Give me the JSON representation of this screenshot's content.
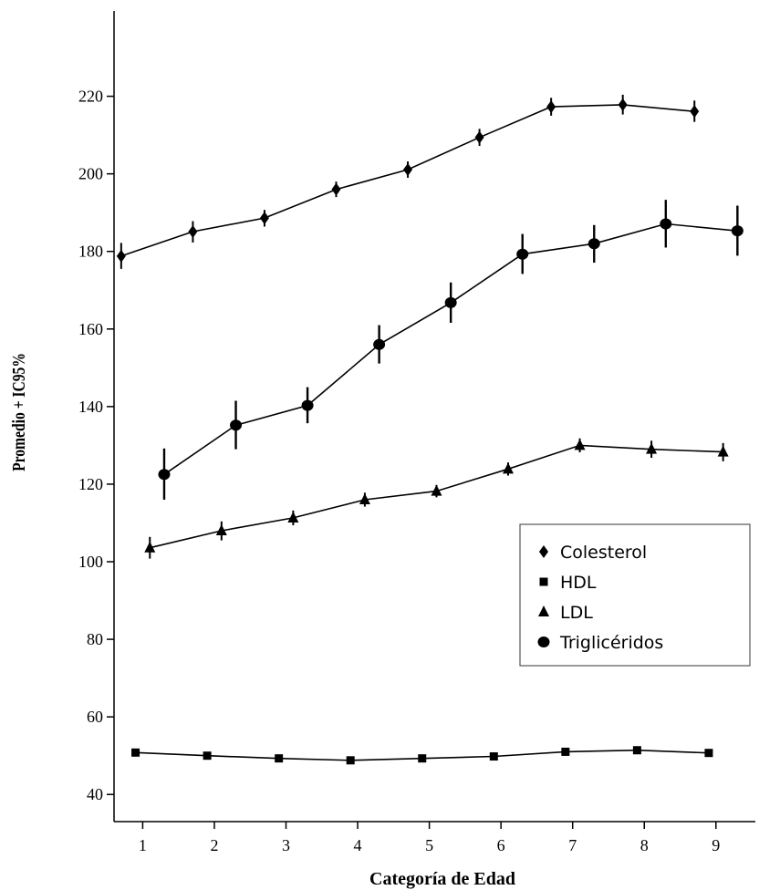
{
  "chart_data": {
    "type": "line",
    "xlabel": "Categoría de Edad",
    "ylabel": "Promedio + IC95%",
    "xlim": [
      0.6,
      9.55
    ],
    "ylim": [
      33,
      242
    ],
    "x_ticks": [
      1,
      2,
      3,
      4,
      5,
      6,
      7,
      8,
      9
    ],
    "y_ticks": [
      40,
      60,
      80,
      100,
      120,
      140,
      160,
      180,
      200,
      220
    ],
    "grid": false,
    "legend_position": "right",
    "series": [
      {
        "name": "Colesterol",
        "marker": "diamond",
        "points": [
          {
            "x": 0.7,
            "y": 178.8,
            "lo": 175.5,
            "hi": 182.2
          },
          {
            "x": 1.7,
            "y": 185.1,
            "lo": 182.3,
            "hi": 187.8
          },
          {
            "x": 2.7,
            "y": 188.6,
            "lo": 186.4,
            "hi": 190.7
          },
          {
            "x": 3.7,
            "y": 196.0,
            "lo": 194.0,
            "hi": 198.0
          },
          {
            "x": 4.7,
            "y": 201.1,
            "lo": 199.0,
            "hi": 203.2
          },
          {
            "x": 5.7,
            "y": 209.4,
            "lo": 207.2,
            "hi": 211.6
          },
          {
            "x": 6.7,
            "y": 217.3,
            "lo": 215.0,
            "hi": 219.6
          },
          {
            "x": 7.7,
            "y": 217.8,
            "lo": 215.3,
            "hi": 220.4
          },
          {
            "x": 8.7,
            "y": 216.1,
            "lo": 213.4,
            "hi": 218.9
          }
        ]
      },
      {
        "name": "HDL",
        "marker": "square",
        "points": [
          {
            "x": 0.9,
            "y": 50.8,
            "lo": 49.8,
            "hi": 51.8
          },
          {
            "x": 1.9,
            "y": 50.0,
            "lo": 49.2,
            "hi": 50.8
          },
          {
            "x": 2.9,
            "y": 49.3,
            "lo": 48.6,
            "hi": 50.0
          },
          {
            "x": 3.9,
            "y": 48.8,
            "lo": 48.2,
            "hi": 49.4
          },
          {
            "x": 4.9,
            "y": 49.3,
            "lo": 48.7,
            "hi": 49.9
          },
          {
            "x": 5.9,
            "y": 49.8,
            "lo": 49.1,
            "hi": 50.5
          },
          {
            "x": 6.9,
            "y": 51.0,
            "lo": 50.3,
            "hi": 51.7
          },
          {
            "x": 7.9,
            "y": 51.4,
            "lo": 50.6,
            "hi": 52.2
          },
          {
            "x": 8.9,
            "y": 50.7,
            "lo": 49.8,
            "hi": 51.6
          }
        ]
      },
      {
        "name": "LDL",
        "marker": "triangle",
        "points": [
          {
            "x": 1.1,
            "y": 103.6,
            "lo": 100.8,
            "hi": 106.4
          },
          {
            "x": 2.1,
            "y": 108.0,
            "lo": 105.5,
            "hi": 110.4
          },
          {
            "x": 3.1,
            "y": 111.3,
            "lo": 109.4,
            "hi": 113.2
          },
          {
            "x": 4.1,
            "y": 116.0,
            "lo": 114.2,
            "hi": 117.8
          },
          {
            "x": 5.1,
            "y": 118.2,
            "lo": 116.6,
            "hi": 119.8
          },
          {
            "x": 6.1,
            "y": 123.9,
            "lo": 122.2,
            "hi": 125.6
          },
          {
            "x": 7.1,
            "y": 130.0,
            "lo": 128.2,
            "hi": 131.8
          },
          {
            "x": 8.1,
            "y": 129.0,
            "lo": 126.8,
            "hi": 131.2
          },
          {
            "x": 9.1,
            "y": 128.3,
            "lo": 125.9,
            "hi": 130.6
          }
        ]
      },
      {
        "name": "Triglicéridos",
        "marker": "circle",
        "points": [
          {
            "x": 1.3,
            "y": 122.5,
            "lo": 116.0,
            "hi": 129.2
          },
          {
            "x": 2.3,
            "y": 135.2,
            "lo": 129.0,
            "hi": 141.5
          },
          {
            "x": 3.3,
            "y": 140.3,
            "lo": 135.7,
            "hi": 145.0
          },
          {
            "x": 4.3,
            "y": 156.0,
            "lo": 151.1,
            "hi": 161.0
          },
          {
            "x": 5.3,
            "y": 166.8,
            "lo": 161.6,
            "hi": 172.0
          },
          {
            "x": 6.3,
            "y": 179.3,
            "lo": 174.2,
            "hi": 184.5
          },
          {
            "x": 7.3,
            "y": 182.0,
            "lo": 177.1,
            "hi": 186.8
          },
          {
            "x": 8.3,
            "y": 187.1,
            "lo": 181.0,
            "hi": 193.3
          },
          {
            "x": 9.3,
            "y": 185.3,
            "lo": 178.9,
            "hi": 191.8
          }
        ]
      }
    ]
  }
}
